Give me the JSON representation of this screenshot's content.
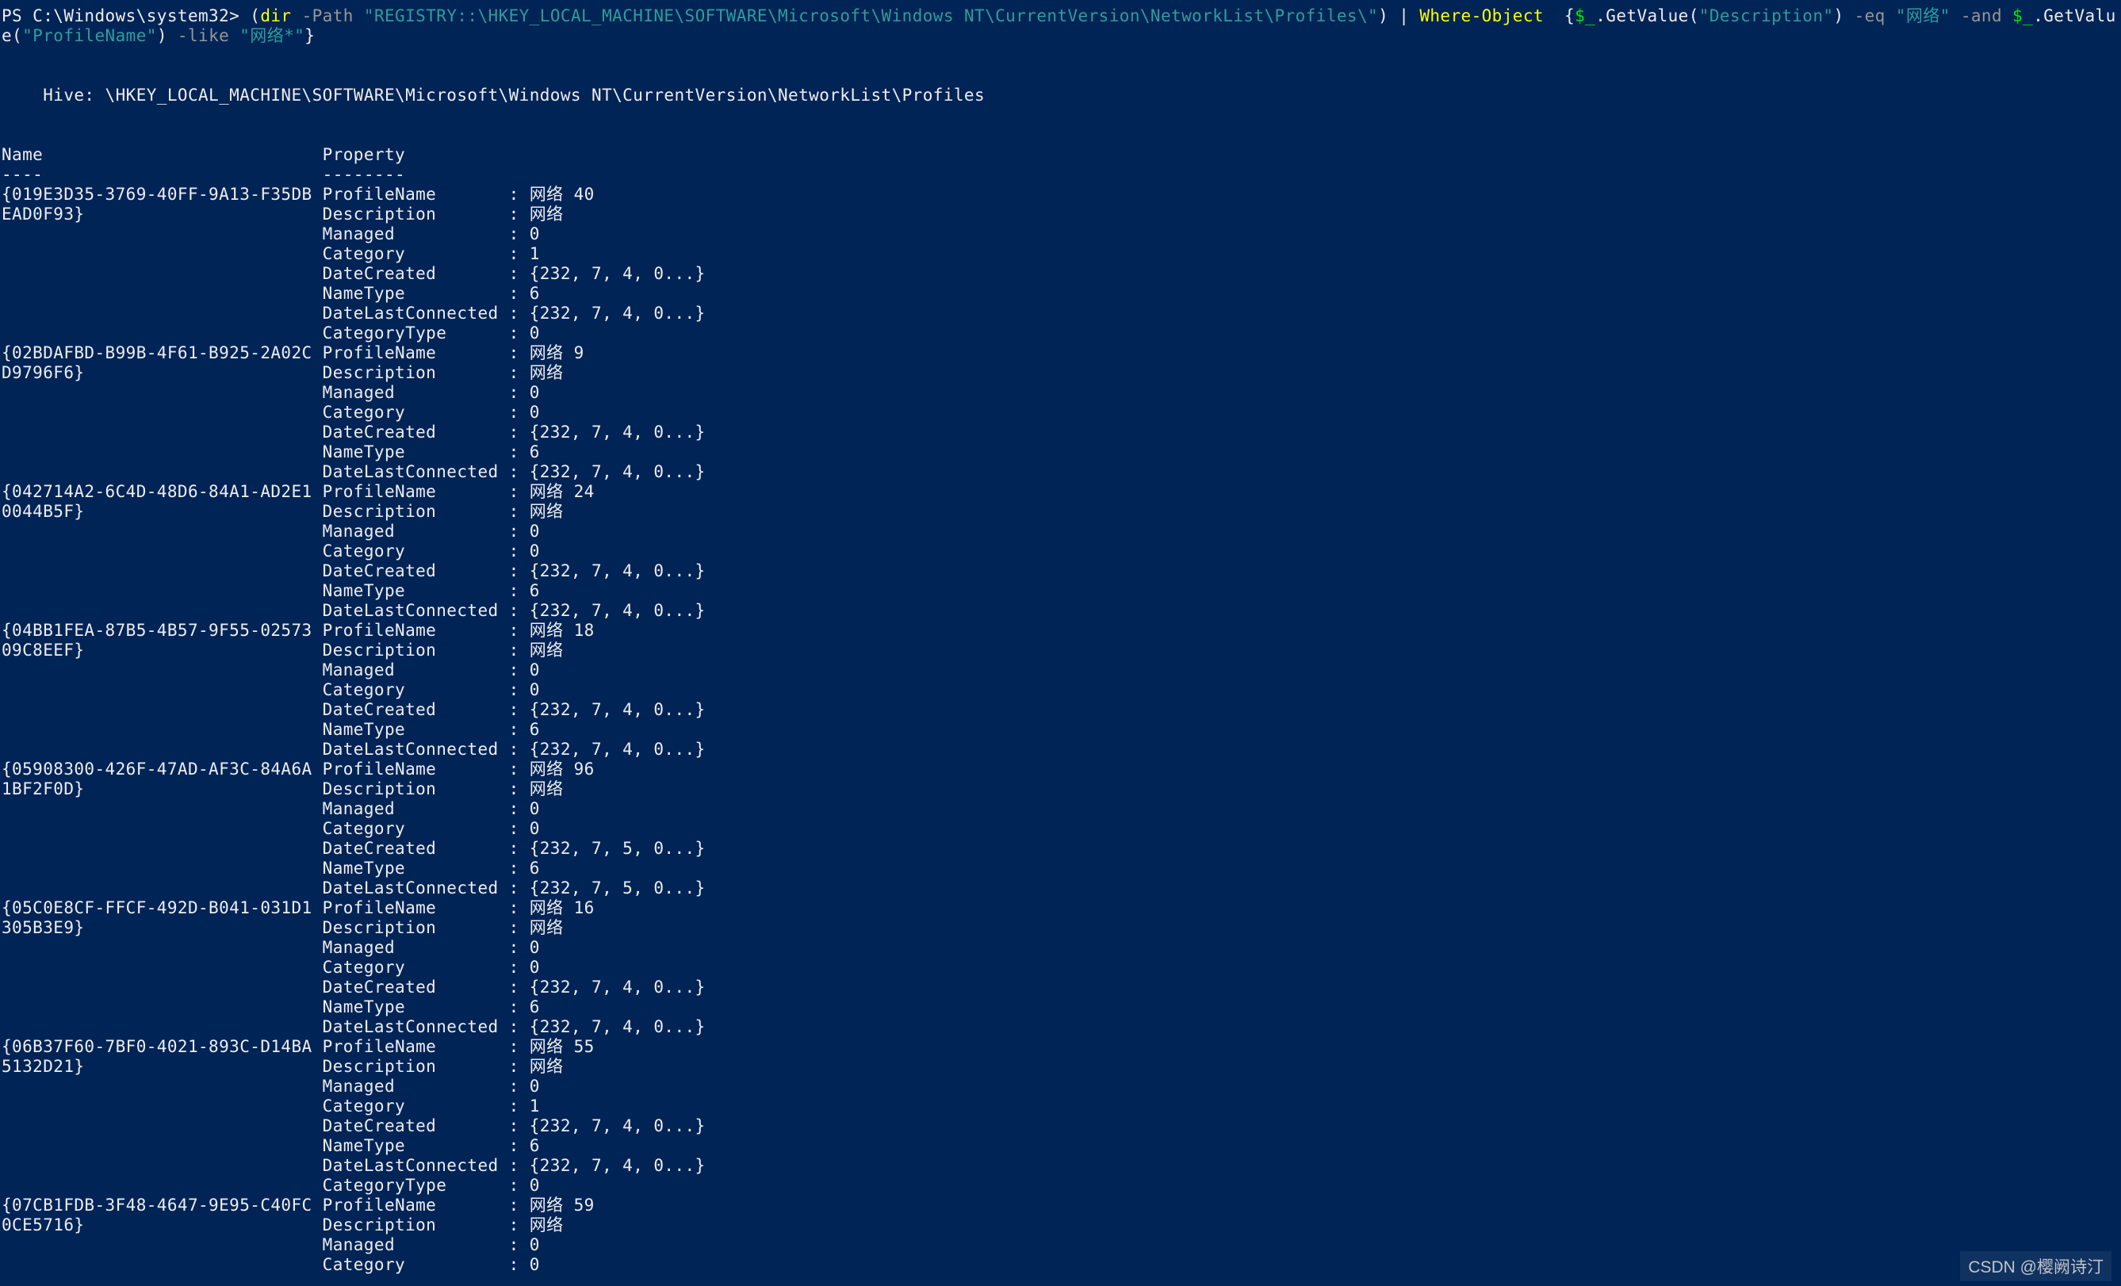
{
  "palette": {
    "background": "#012456",
    "foreground": "#EEEDF0",
    "command": "#FFFF00",
    "parameter": "#969696",
    "string": "#2E9D9D",
    "variable": "#00E800",
    "default": "#EEEDF0",
    "watermark": "#C2C5CB"
  },
  "terminal": {
    "command": {
      "line1": [
        {
          "text": "PS C:\\Windows\\system32> (",
          "role": "default"
        },
        {
          "text": "dir",
          "role": "command"
        },
        {
          "text": " ",
          "role": "default"
        },
        {
          "text": "-Path",
          "role": "parameter"
        },
        {
          "text": " ",
          "role": "default"
        },
        {
          "text": "\"REGISTRY::\\HKEY_LOCAL_MACHINE\\SOFTWARE\\Microsoft\\Windows NT\\CurrentVersion\\NetworkList\\Profiles\\\"",
          "role": "string"
        },
        {
          "text": ") | ",
          "role": "default"
        },
        {
          "text": "Where-Object",
          "role": "command"
        },
        {
          "text": "  {",
          "role": "default"
        },
        {
          "text": "$_",
          "role": "variable"
        },
        {
          "text": ".GetValue(",
          "role": "default"
        },
        {
          "text": "\"Description\"",
          "role": "string"
        },
        {
          "text": ") ",
          "role": "default"
        },
        {
          "text": "-eq",
          "role": "parameter"
        },
        {
          "text": " ",
          "role": "default"
        },
        {
          "text": "\"网络\"",
          "role": "string"
        },
        {
          "text": " ",
          "role": "default"
        },
        {
          "text": "-and",
          "role": "parameter"
        },
        {
          "text": " ",
          "role": "default"
        },
        {
          "text": "$_",
          "role": "variable"
        },
        {
          "text": ".GetValu",
          "role": "default"
        }
      ],
      "line2": [
        {
          "text": "e(",
          "role": "default"
        },
        {
          "text": "\"ProfileName\"",
          "role": "string"
        },
        {
          "text": ") ",
          "role": "default"
        },
        {
          "text": "-like",
          "role": "parameter"
        },
        {
          "text": " ",
          "role": "default"
        },
        {
          "text": "\"网络*\"",
          "role": "string"
        },
        {
          "text": "}",
          "role": "default"
        }
      ]
    },
    "hive_line": "    Hive: \\HKEY_LOCAL_MACHINE\\SOFTWARE\\Microsoft\\Windows NT\\CurrentVersion\\NetworkList\\Profiles",
    "table": {
      "name_header": "Name",
      "property_header": "Property",
      "name_underline": "----",
      "property_underline": "--------",
      "name_col_width": 31,
      "prop_name_width": 17,
      "separator": " : ",
      "rows": [
        {
          "name_lines": [
            "{019E3D35-3769-40FF-9A13-F35DB",
            "EAD0F93}"
          ],
          "properties": [
            {
              "name": "ProfileName",
              "value": "网络 40"
            },
            {
              "name": "Description",
              "value": "网络"
            },
            {
              "name": "Managed",
              "value": "0"
            },
            {
              "name": "Category",
              "value": "1"
            },
            {
              "name": "DateCreated",
              "value": "{232, 7, 4, 0...}"
            },
            {
              "name": "NameType",
              "value": "6"
            },
            {
              "name": "DateLastConnected",
              "value": "{232, 7, 4, 0...}"
            },
            {
              "name": "CategoryType",
              "value": "0"
            }
          ]
        },
        {
          "name_lines": [
            "{02BDAFBD-B99B-4F61-B925-2A02C",
            "D9796F6}"
          ],
          "properties": [
            {
              "name": "ProfileName",
              "value": "网络 9"
            },
            {
              "name": "Description",
              "value": "网络"
            },
            {
              "name": "Managed",
              "value": "0"
            },
            {
              "name": "Category",
              "value": "0"
            },
            {
              "name": "DateCreated",
              "value": "{232, 7, 4, 0...}"
            },
            {
              "name": "NameType",
              "value": "6"
            },
            {
              "name": "DateLastConnected",
              "value": "{232, 7, 4, 0...}"
            }
          ]
        },
        {
          "name_lines": [
            "{042714A2-6C4D-48D6-84A1-AD2E1",
            "0044B5F}"
          ],
          "properties": [
            {
              "name": "ProfileName",
              "value": "网络 24"
            },
            {
              "name": "Description",
              "value": "网络"
            },
            {
              "name": "Managed",
              "value": "0"
            },
            {
              "name": "Category",
              "value": "0"
            },
            {
              "name": "DateCreated",
              "value": "{232, 7, 4, 0...}"
            },
            {
              "name": "NameType",
              "value": "6"
            },
            {
              "name": "DateLastConnected",
              "value": "{232, 7, 4, 0...}"
            }
          ]
        },
        {
          "name_lines": [
            "{04BB1FEA-87B5-4B57-9F55-02573",
            "09C8EEF}"
          ],
          "properties": [
            {
              "name": "ProfileName",
              "value": "网络 18"
            },
            {
              "name": "Description",
              "value": "网络"
            },
            {
              "name": "Managed",
              "value": "0"
            },
            {
              "name": "Category",
              "value": "0"
            },
            {
              "name": "DateCreated",
              "value": "{232, 7, 4, 0...}"
            },
            {
              "name": "NameType",
              "value": "6"
            },
            {
              "name": "DateLastConnected",
              "value": "{232, 7, 4, 0...}"
            }
          ]
        },
        {
          "name_lines": [
            "{05908300-426F-47AD-AF3C-84A6A",
            "1BF2F0D}"
          ],
          "properties": [
            {
              "name": "ProfileName",
              "value": "网络 96"
            },
            {
              "name": "Description",
              "value": "网络"
            },
            {
              "name": "Managed",
              "value": "0"
            },
            {
              "name": "Category",
              "value": "0"
            },
            {
              "name": "DateCreated",
              "value": "{232, 7, 5, 0...}"
            },
            {
              "name": "NameType",
              "value": "6"
            },
            {
              "name": "DateLastConnected",
              "value": "{232, 7, 5, 0...}"
            }
          ]
        },
        {
          "name_lines": [
            "{05C0E8CF-FFCF-492D-B041-031D1",
            "305B3E9}"
          ],
          "properties": [
            {
              "name": "ProfileName",
              "value": "网络 16"
            },
            {
              "name": "Description",
              "value": "网络"
            },
            {
              "name": "Managed",
              "value": "0"
            },
            {
              "name": "Category",
              "value": "0"
            },
            {
              "name": "DateCreated",
              "value": "{232, 7, 4, 0...}"
            },
            {
              "name": "NameType",
              "value": "6"
            },
            {
              "name": "DateLastConnected",
              "value": "{232, 7, 4, 0...}"
            }
          ]
        },
        {
          "name_lines": [
            "{06B37F60-7BF0-4021-893C-D14BA",
            "5132D21}"
          ],
          "properties": [
            {
              "name": "ProfileName",
              "value": "网络 55"
            },
            {
              "name": "Description",
              "value": "网络"
            },
            {
              "name": "Managed",
              "value": "0"
            },
            {
              "name": "Category",
              "value": "1"
            },
            {
              "name": "DateCreated",
              "value": "{232, 7, 4, 0...}"
            },
            {
              "name": "NameType",
              "value": "6"
            },
            {
              "name": "DateLastConnected",
              "value": "{232, 7, 4, 0...}"
            },
            {
              "name": "CategoryType",
              "value": "0"
            }
          ]
        },
        {
          "name_lines": [
            "{07CB1FDB-3F48-4647-9E95-C40FC",
            "0CE5716}"
          ],
          "properties": [
            {
              "name": "ProfileName",
              "value": "网络 59"
            },
            {
              "name": "Description",
              "value": "网络"
            },
            {
              "name": "Managed",
              "value": "0"
            },
            {
              "name": "Category",
              "value": "0"
            }
          ]
        }
      ]
    }
  },
  "watermark": {
    "text": "CSDN @樱阙诗汀"
  }
}
